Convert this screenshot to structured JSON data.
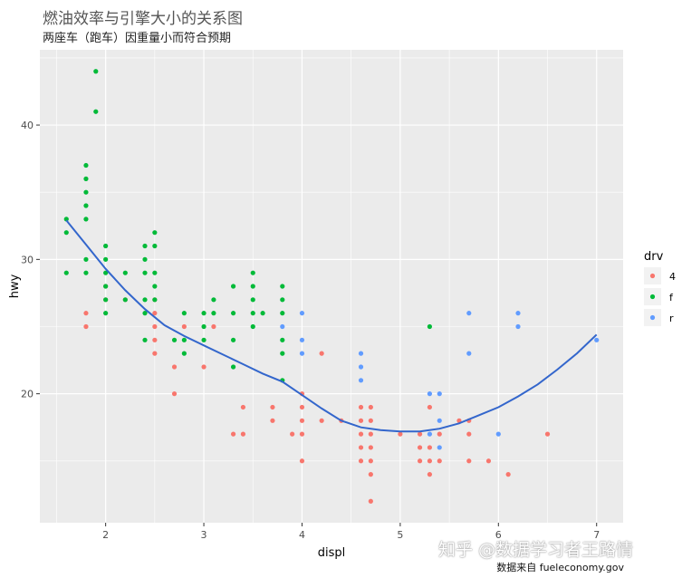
{
  "title": "燃油效率与引擎大小的关系图",
  "subtitle": "两座车（跑车）因重量小而符合预期",
  "caption": "数据来自 fueleconomy.gov",
  "watermark": "知乎 @数据学习者王路情",
  "chart_data": {
    "type": "scatter",
    "xlabel": "displ",
    "ylabel": "hwy",
    "xlim": [
      1.33,
      7.27
    ],
    "ylim": [
      10.4,
      45.6
    ],
    "xticks": [
      2,
      3,
      4,
      5,
      6,
      7
    ],
    "yticks": [
      20,
      30,
      40
    ],
    "grid": true,
    "legend": {
      "title": "drv",
      "position": "right",
      "entries": [
        "4",
        "f",
        "r"
      ]
    },
    "colors": {
      "4": "#F8766D",
      "f": "#00BA38",
      "r": "#619CFF",
      "smooth": "#3366CC",
      "panel": "#EBEBEB",
      "grid": "#FFFFFF"
    },
    "series": [
      {
        "name": "4",
        "points": [
          [
            1.8,
            26
          ],
          [
            1.8,
            25
          ],
          [
            2.0,
            28
          ],
          [
            2.0,
            27
          ],
          [
            2.2,
            27
          ],
          [
            2.5,
            27
          ],
          [
            2.5,
            26
          ],
          [
            2.5,
            25
          ],
          [
            2.5,
            24
          ],
          [
            2.5,
            23
          ],
          [
            2.7,
            22
          ],
          [
            2.7,
            20
          ],
          [
            2.8,
            25
          ],
          [
            3.0,
            22
          ],
          [
            3.1,
            25
          ],
          [
            3.4,
            19
          ],
          [
            3.3,
            17
          ],
          [
            3.4,
            17
          ],
          [
            3.7,
            18
          ],
          [
            3.7,
            19
          ],
          [
            3.9,
            17
          ],
          [
            4.0,
            15
          ],
          [
            4.0,
            17
          ],
          [
            4.0,
            19
          ],
          [
            4.0,
            20
          ],
          [
            4.2,
            18
          ],
          [
            4.2,
            23
          ],
          [
            4.0,
            18
          ],
          [
            4.4,
            18
          ],
          [
            4.6,
            15
          ],
          [
            4.6,
            16
          ],
          [
            4.6,
            17
          ],
          [
            4.6,
            18
          ],
          [
            4.6,
            19
          ],
          [
            4.7,
            12
          ],
          [
            4.7,
            15
          ],
          [
            4.7,
            16
          ],
          [
            4.7,
            17
          ],
          [
            4.7,
            18
          ],
          [
            4.7,
            19
          ],
          [
            5.0,
            17
          ],
          [
            5.2,
            15
          ],
          [
            5.2,
            16
          ],
          [
            5.2,
            17
          ],
          [
            5.3,
            14
          ],
          [
            5.3,
            15
          ],
          [
            5.3,
            19
          ],
          [
            5.4,
            17
          ],
          [
            5.4,
            15
          ],
          [
            5.6,
            18
          ],
          [
            5.7,
            15
          ],
          [
            5.7,
            17
          ],
          [
            5.7,
            18
          ],
          [
            5.9,
            15
          ],
          [
            6.1,
            14
          ],
          [
            6.5,
            17
          ],
          [
            5.3,
            16
          ],
          [
            4.7,
            14
          ]
        ]
      },
      {
        "name": "f",
        "points": [
          [
            1.6,
            33
          ],
          [
            1.6,
            32
          ],
          [
            1.6,
            29
          ],
          [
            1.8,
            37
          ],
          [
            1.8,
            36
          ],
          [
            1.8,
            35
          ],
          [
            1.8,
            34
          ],
          [
            1.8,
            33
          ],
          [
            1.8,
            30
          ],
          [
            1.8,
            29
          ],
          [
            1.9,
            44
          ],
          [
            1.9,
            41
          ],
          [
            2.0,
            31
          ],
          [
            2.0,
            30
          ],
          [
            2.0,
            29
          ],
          [
            2.0,
            28
          ],
          [
            2.0,
            27
          ],
          [
            2.0,
            26
          ],
          [
            2.2,
            29
          ],
          [
            2.2,
            27
          ],
          [
            2.4,
            31
          ],
          [
            2.4,
            30
          ],
          [
            2.4,
            29
          ],
          [
            2.4,
            27
          ],
          [
            2.4,
            26
          ],
          [
            2.4,
            24
          ],
          [
            2.5,
            32
          ],
          [
            2.5,
            31
          ],
          [
            2.5,
            29
          ],
          [
            2.5,
            28
          ],
          [
            2.5,
            27
          ],
          [
            2.7,
            24
          ],
          [
            2.8,
            26
          ],
          [
            2.8,
            24
          ],
          [
            2.8,
            23
          ],
          [
            3.0,
            26
          ],
          [
            3.0,
            25
          ],
          [
            3.0,
            24
          ],
          [
            3.1,
            27
          ],
          [
            3.1,
            26
          ],
          [
            3.3,
            28
          ],
          [
            3.3,
            26
          ],
          [
            3.3,
            24
          ],
          [
            3.3,
            22
          ],
          [
            3.5,
            29
          ],
          [
            3.5,
            28
          ],
          [
            3.5,
            27
          ],
          [
            3.5,
            26
          ],
          [
            3.5,
            25
          ],
          [
            3.6,
            26
          ],
          [
            3.8,
            28
          ],
          [
            3.8,
            27
          ],
          [
            3.8,
            26
          ],
          [
            3.8,
            24
          ],
          [
            3.8,
            23
          ],
          [
            3.8,
            21
          ],
          [
            5.3,
            25
          ]
        ]
      },
      {
        "name": "r",
        "points": [
          [
            3.8,
            25
          ],
          [
            4.0,
            26
          ],
          [
            4.0,
            24
          ],
          [
            4.0,
            23
          ],
          [
            4.6,
            23
          ],
          [
            4.6,
            22
          ],
          [
            4.6,
            21
          ],
          [
            5.3,
            20
          ],
          [
            5.3,
            17
          ],
          [
            5.4,
            20
          ],
          [
            5.4,
            18
          ],
          [
            5.4,
            16
          ],
          [
            5.7,
            26
          ],
          [
            5.7,
            23
          ],
          [
            6.0,
            17
          ],
          [
            6.2,
            26
          ],
          [
            6.2,
            25
          ],
          [
            7.0,
            24
          ]
        ]
      }
    ],
    "smooth": {
      "x": [
        1.6,
        1.8,
        2.0,
        2.2,
        2.4,
        2.6,
        2.8,
        3.0,
        3.2,
        3.4,
        3.6,
        3.8,
        4.0,
        4.2,
        4.4,
        4.6,
        4.8,
        5.0,
        5.2,
        5.4,
        5.6,
        5.8,
        6.0,
        6.2,
        6.4,
        6.6,
        6.8,
        7.0
      ],
      "y": [
        32.9,
        31.1,
        29.3,
        27.7,
        26.3,
        25.1,
        24.3,
        23.6,
        22.9,
        22.2,
        21.5,
        20.9,
        19.9,
        18.9,
        18.0,
        17.5,
        17.3,
        17.2,
        17.2,
        17.4,
        17.8,
        18.4,
        19.0,
        19.8,
        20.7,
        21.8,
        23.0,
        24.4
      ]
    }
  }
}
